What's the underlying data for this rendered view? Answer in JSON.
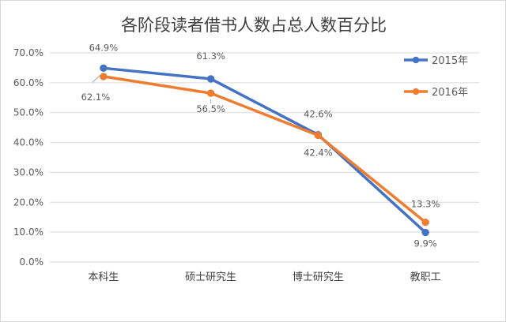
{
  "chart_data": {
    "type": "line",
    "title": "各阶段读者借书人数占总人数百分比",
    "categories": [
      "本科生",
      "硕士研究生",
      "博士研究生",
      "教职工"
    ],
    "series": [
      {
        "name": "2015年",
        "values": [
          64.9,
          61.3,
          42.6,
          9.9
        ],
        "labels": [
          "64.9%",
          "61.3%",
          "42.6%",
          "9.9%"
        ],
        "color": "#4472c4"
      },
      {
        "name": "2016年",
        "values": [
          62.1,
          56.5,
          42.4,
          13.3
        ],
        "labels": [
          "62.1%",
          "56.5%",
          "42.4%",
          "13.3%"
        ],
        "color": "#ed7d31"
      }
    ],
    "ylim": [
      0,
      70
    ],
    "ytick_values": [
      0,
      10,
      20,
      30,
      40,
      50,
      60,
      70
    ],
    "ytick_labels": [
      "0.0%",
      "10.0%",
      "20.0%",
      "30.0%",
      "40.0%",
      "50.0%",
      "60.0%",
      "70.0%"
    ],
    "grid": true,
    "legend_position": "top-right",
    "gridline_color": "#d9d9d9",
    "leader_line_color": "#a6a6a6"
  }
}
